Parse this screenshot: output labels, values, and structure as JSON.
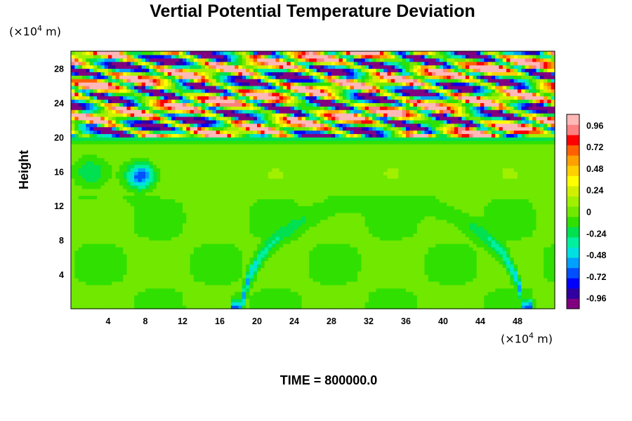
{
  "chart_data": {
    "type": "heatmap",
    "title": "Vertial Potential Temperature Deviation",
    "ylabel": "Height",
    "y_unit_prefix": "(×10",
    "y_unit_exp": "4",
    "y_unit_suffix": " m)",
    "x_unit_prefix": "(×10",
    "x_unit_exp": "4",
    "x_unit_suffix": " m)",
    "xlim": [
      0,
      52
    ],
    "ylim": [
      0,
      30
    ],
    "x_ticks": [
      4,
      8,
      12,
      16,
      20,
      24,
      28,
      32,
      36,
      40,
      44,
      48
    ],
    "y_ticks": [
      4,
      8,
      12,
      16,
      20,
      24,
      28
    ],
    "colorbar": {
      "min": -1.08,
      "max": 1.08,
      "ticks": [
        "0.96",
        "0.72",
        "0.48",
        "0.24",
        "0",
        "-0.24",
        "-0.48",
        "-0.72",
        "-0.96"
      ],
      "colors": [
        "#800080",
        "#3000a0",
        "#0000ff",
        "#0050ff",
        "#00a0ff",
        "#00e0e0",
        "#00f0a0",
        "#00e050",
        "#30e000",
        "#70e800",
        "#a0f000",
        "#d0f000",
        "#ffff00",
        "#ffd000",
        "#ffa000",
        "#ff6000",
        "#ff0000",
        "#ff8080",
        "#ffb8b8"
      ]
    },
    "features": {
      "upper_layer_bottom": 20,
      "upper_layer_top": 30,
      "eddy": {
        "x": 7.5,
        "y": 15.5
      },
      "domes": [
        {
          "x0": 18.5,
          "x1": 48.5,
          "height": 12.5,
          "value": -0.55
        }
      ]
    },
    "time_label": "TIME = 800000.0"
  }
}
